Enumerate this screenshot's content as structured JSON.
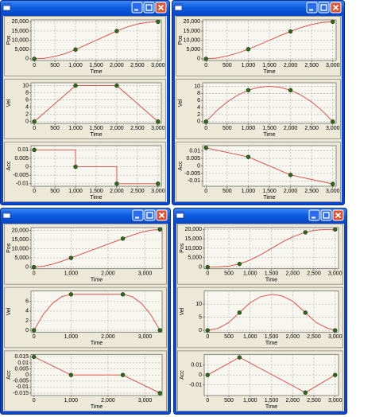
{
  "windows": [
    {
      "xlim": [
        -80,
        3080
      ],
      "xticks": [
        0,
        500,
        {
          "value": 1000,
          "label": "1,000"
        },
        {
          "value": 1500,
          "label": "1,500"
        },
        {
          "value": 2000,
          "label": "2,000"
        },
        {
          "value": 2500,
          "label": "2,500"
        },
        {
          "value": 3000,
          "label": "3,000"
        }
      ],
      "charts": [
        {
          "type": "line",
          "ylabel": "Pos",
          "xlabel": "Time",
          "ylim": [
            -900,
            21000
          ],
          "yticks": [
            0,
            {
              "value": 5000,
              "label": "5,000"
            },
            {
              "value": 10000,
              "label": "10,000"
            },
            {
              "value": 15000,
              "label": "15,000"
            },
            {
              "value": 20000,
              "label": "20,000"
            }
          ],
          "grid": true,
          "color": "#e4433b",
          "knot_color": "#2f6a1c",
          "curve": {
            "x": [
              0,
              250,
              500,
              750,
              1000,
              1250,
              1500,
              1750,
              2000,
              2250,
              2500,
              2750,
              3000
            ],
            "y": [
              0,
              312.5,
              1250,
              2812.5,
              5000,
              7500,
              10000,
              12500,
              15000,
              17187.5,
              18750,
              19687.5,
              20000
            ]
          },
          "knots": {
            "x": [
              0,
              1000,
              2000,
              3000
            ],
            "y": [
              0,
              5000,
              15000,
              20000
            ]
          }
        },
        {
          "type": "line",
          "ylabel": "Vel",
          "xlabel": "Time",
          "ylim": [
            -0.5,
            10.8
          ],
          "yticks": [
            0,
            2,
            4,
            6,
            8,
            10
          ],
          "grid": true,
          "color": "#e4433b",
          "knot_color": "#2f6a1c",
          "curve": {
            "x": [
              0,
              1000,
              2000,
              3000
            ],
            "y": [
              0,
              10,
              10,
              0
            ]
          },
          "knots": {
            "x": [
              0,
              1000,
              2000,
              3000
            ],
            "y": [
              0,
              10,
              10,
              0
            ]
          }
        },
        {
          "type": "line",
          "ylabel": "Acc",
          "xlabel": "Time",
          "ylim": [
            -0.0115,
            0.0125
          ],
          "yticks": [
            -0.01,
            -0.005,
            0,
            0.005,
            0.01
          ],
          "grid": true,
          "color": "#e4433b",
          "knot_color": "#2f6a1c",
          "curve": {
            "x": [
              0,
              1000,
              1000,
              2000,
              2000,
              3000
            ],
            "y": [
              0.01,
              0.01,
              0,
              0,
              -0.01,
              -0.01
            ]
          },
          "knots": {
            "x": [
              0,
              1000,
              2000,
              3000
            ],
            "y": [
              0.01,
              0,
              -0.01,
              -0.01
            ]
          }
        }
      ]
    },
    {
      "xlim": [
        -80,
        3080
      ],
      "xticks": [
        0,
        500,
        {
          "value": 1000,
          "label": "1,000"
        },
        {
          "value": 1500,
          "label": "1,500"
        },
        {
          "value": 2000,
          "label": "2,000"
        },
        {
          "value": 2500,
          "label": "2,500"
        },
        {
          "value": 3000,
          "label": "3,000"
        }
      ],
      "charts": [
        {
          "type": "line",
          "ylabel": "Pos",
          "xlabel": "Time",
          "ylim": [
            -900,
            21000
          ],
          "yticks": [
            0,
            {
              "value": 5000,
              "label": "5,000"
            },
            {
              "value": 10000,
              "label": "10,000"
            },
            {
              "value": 15000,
              "label": "15,000"
            },
            {
              "value": 20000,
              "label": "20,000"
            }
          ],
          "grid": true,
          "color": "#e4433b",
          "knot_color": "#2f6a1c",
          "curve": {
            "x": [
              0,
              250,
              500,
              750,
              1000,
              1250,
              1500,
              1750,
              2000,
              2250,
              2500,
              2750,
              3000
            ],
            "y": [
              0,
              393,
              1481,
              3125,
              5185,
              7523,
              10000,
              12477,
              14815,
              16875,
              18519,
              19607,
              20000
            ]
          },
          "knots": {
            "x": [
              0,
              1000,
              2000,
              3000
            ],
            "y": [
              0,
              5185,
              14815,
              20000
            ]
          }
        },
        {
          "type": "line",
          "ylabel": "Vel",
          "xlabel": "Time",
          "ylim": [
            -0.5,
            11
          ],
          "yticks": [
            0,
            2,
            4,
            6,
            8,
            10
          ],
          "grid": true,
          "color": "#e4433b",
          "knot_color": "#2f6a1c",
          "curve": {
            "x": [
              0,
              250,
              500,
              750,
              1000,
              1250,
              1500,
              1750,
              2000,
              2250,
              2500,
              2750,
              3000
            ],
            "y": [
              0,
              3.06,
              5.56,
              7.5,
              8.89,
              9.72,
              10,
              9.72,
              8.89,
              7.5,
              5.56,
              3.06,
              0
            ]
          },
          "knots": {
            "x": [
              0,
              1000,
              2000,
              3000
            ],
            "y": [
              0,
              8.89,
              8.89,
              0
            ]
          }
        },
        {
          "type": "line",
          "ylabel": "Acc",
          "xlabel": "Time",
          "ylim": [
            -0.0135,
            0.0135
          ],
          "yticks": [
            -0.01,
            -0.005,
            0,
            0.005,
            0.01
          ],
          "grid": true,
          "color": "#e4433b",
          "knot_color": "#2f6a1c",
          "curve": {
            "x": [
              0,
              1000,
              2000,
              3000
            ],
            "y": [
              0.012,
              0.006,
              -0.006,
              -0.012
            ]
          },
          "knots": {
            "x": [
              0,
              1000,
              2000,
              3000
            ],
            "y": [
              0.012,
              0.006,
              -0.006,
              -0.012
            ]
          }
        }
      ]
    },
    {
      "xlim": [
        -80,
        3460
      ],
      "xticks": [
        0,
        {
          "value": 1000,
          "label": "1,000"
        },
        {
          "value": 2000,
          "label": "2,000"
        },
        {
          "value": 3000,
          "label": "3,000"
        }
      ],
      "charts": [
        {
          "type": "line",
          "ylabel": "Pos",
          "xlabel": "Time",
          "ylim": [
            -900,
            21500
          ],
          "yticks": [
            0,
            {
              "value": 5000,
              "label": "5,000"
            },
            {
              "value": 10000,
              "label": "10,000"
            },
            {
              "value": 15000,
              "label": "15,000"
            },
            {
              "value": 20000,
              "label": "20,000"
            }
          ],
          "grid": true,
          "color": "#e4433b",
          "knot_color": "#2f6a1c",
          "curve": {
            "x": [
              0,
              250,
              500,
              750,
              1000,
              1700,
              2400,
              2650,
              2900,
              3150,
              3400
            ],
            "y": [
              0,
              430,
              1563,
              3164,
              5000,
              10250,
              15500,
              17336,
              18938,
              20070,
              20500
            ]
          },
          "knots": {
            "x": [
              0,
              1000,
              2400,
              3400
            ],
            "y": [
              0,
              5000,
              15500,
              20500
            ]
          }
        },
        {
          "type": "line",
          "ylabel": "Vel",
          "xlabel": "Time",
          "ylim": [
            -0.4,
            8.2
          ],
          "yticks": [
            0,
            2,
            4,
            6
          ],
          "grid": true,
          "color": "#e4433b",
          "knot_color": "#2f6a1c",
          "curve": {
            "x": [
              0,
              250,
              500,
              750,
              1000,
              2400,
              2650,
              2900,
              3150,
              3400
            ],
            "y": [
              0,
              3.28,
              5.63,
              7.03,
              7.5,
              7.5,
              7.03,
              5.63,
              3.28,
              0
            ]
          },
          "knots": {
            "x": [
              0,
              1000,
              2400,
              3400
            ],
            "y": [
              0,
              7.5,
              7.5,
              0
            ]
          }
        },
        {
          "type": "line",
          "ylabel": "Acc",
          "xlabel": "Time",
          "ylim": [
            -0.017,
            0.017
          ],
          "yticks": [
            -0.015,
            -0.01,
            -0.005,
            0,
            0.005,
            0.01,
            0.015
          ],
          "grid": true,
          "color": "#e4433b",
          "knot_color": "#2f6a1c",
          "curve": {
            "x": [
              0,
              1000,
              2400,
              3400
            ],
            "y": [
              0.015,
              0,
              0,
              -0.015
            ]
          },
          "knots": {
            "x": [
              0,
              1000,
              2400,
              3400
            ],
            "y": [
              0.015,
              0,
              0,
              -0.015
            ]
          }
        }
      ]
    },
    {
      "xlim": [
        -80,
        3080
      ],
      "xticks": [
        0,
        500,
        {
          "value": 1000,
          "label": "1,000"
        },
        {
          "value": 1500,
          "label": "1,500"
        },
        {
          "value": 2000,
          "label": "2,000"
        },
        {
          "value": 2500,
          "label": "2,500"
        },
        {
          "value": 3000,
          "label": "3,000"
        }
      ],
      "charts": [
        {
          "type": "line",
          "ylabel": "Pos",
          "xlabel": "Time",
          "ylim": [
            -900,
            21000
          ],
          "yticks": [
            0,
            {
              "value": 5000,
              "label": "5,000"
            },
            {
              "value": 10000,
              "label": "10,000"
            },
            {
              "value": 15000,
              "label": "15,000"
            },
            {
              "value": 20000,
              "label": "20,000"
            }
          ],
          "grid": true,
          "color": "#e4433b",
          "knot_color": "#2f6a1c",
          "curve": {
            "x": [
              0,
              250,
              500,
              750,
              1000,
              1250,
              1500,
              1750,
              2000,
              2300,
              2500,
              2750,
              3000
            ],
            "y": [
              0,
              60,
              500,
              1650,
              3750,
              6600,
              9900,
              13200,
              16100,
              18500,
              19500,
              19950,
              20000
            ]
          },
          "knots": {
            "x": [
              0,
              750,
              2300,
              3000
            ],
            "y": [
              0,
              1650,
              18500,
              20000
            ]
          }
        },
        {
          "type": "line",
          "ylabel": "Vel",
          "xlabel": "Time",
          "ylim": [
            -0.7,
            15
          ],
          "yticks": [
            0,
            5,
            10
          ],
          "grid": true,
          "color": "#e4433b",
          "knot_color": "#2f6a1c",
          "curve": {
            "x": [
              0,
              250,
              500,
              750,
              1000,
              1250,
              1525,
              1750,
              2000,
              2300,
              2550,
              2800,
              3000
            ],
            "y": [
              0,
              0.75,
              3,
              6.75,
              10.52,
              12.85,
              13.73,
              13.14,
              11.1,
              6.75,
              3,
              0.9,
              0
            ]
          },
          "knots": {
            "x": [
              0,
              750,
              2300,
              3000
            ],
            "y": [
              0,
              6.75,
              6.75,
              0
            ]
          }
        },
        {
          "type": "line",
          "ylabel": "Acc",
          "xlabel": "Time",
          "ylim": [
            -0.021,
            0.021
          ],
          "yticks": [
            -0.01,
            0,
            0.01
          ],
          "grid": true,
          "color": "#e4433b",
          "knot_color": "#2f6a1c",
          "curve": {
            "x": [
              0,
              750,
              2300,
              3000
            ],
            "y": [
              0,
              0.018,
              -0.018,
              0
            ]
          },
          "knots": {
            "x": [
              0,
              750,
              2300,
              3000
            ],
            "y": [
              0,
              0.018,
              -0.018,
              0
            ]
          }
        }
      ]
    }
  ]
}
